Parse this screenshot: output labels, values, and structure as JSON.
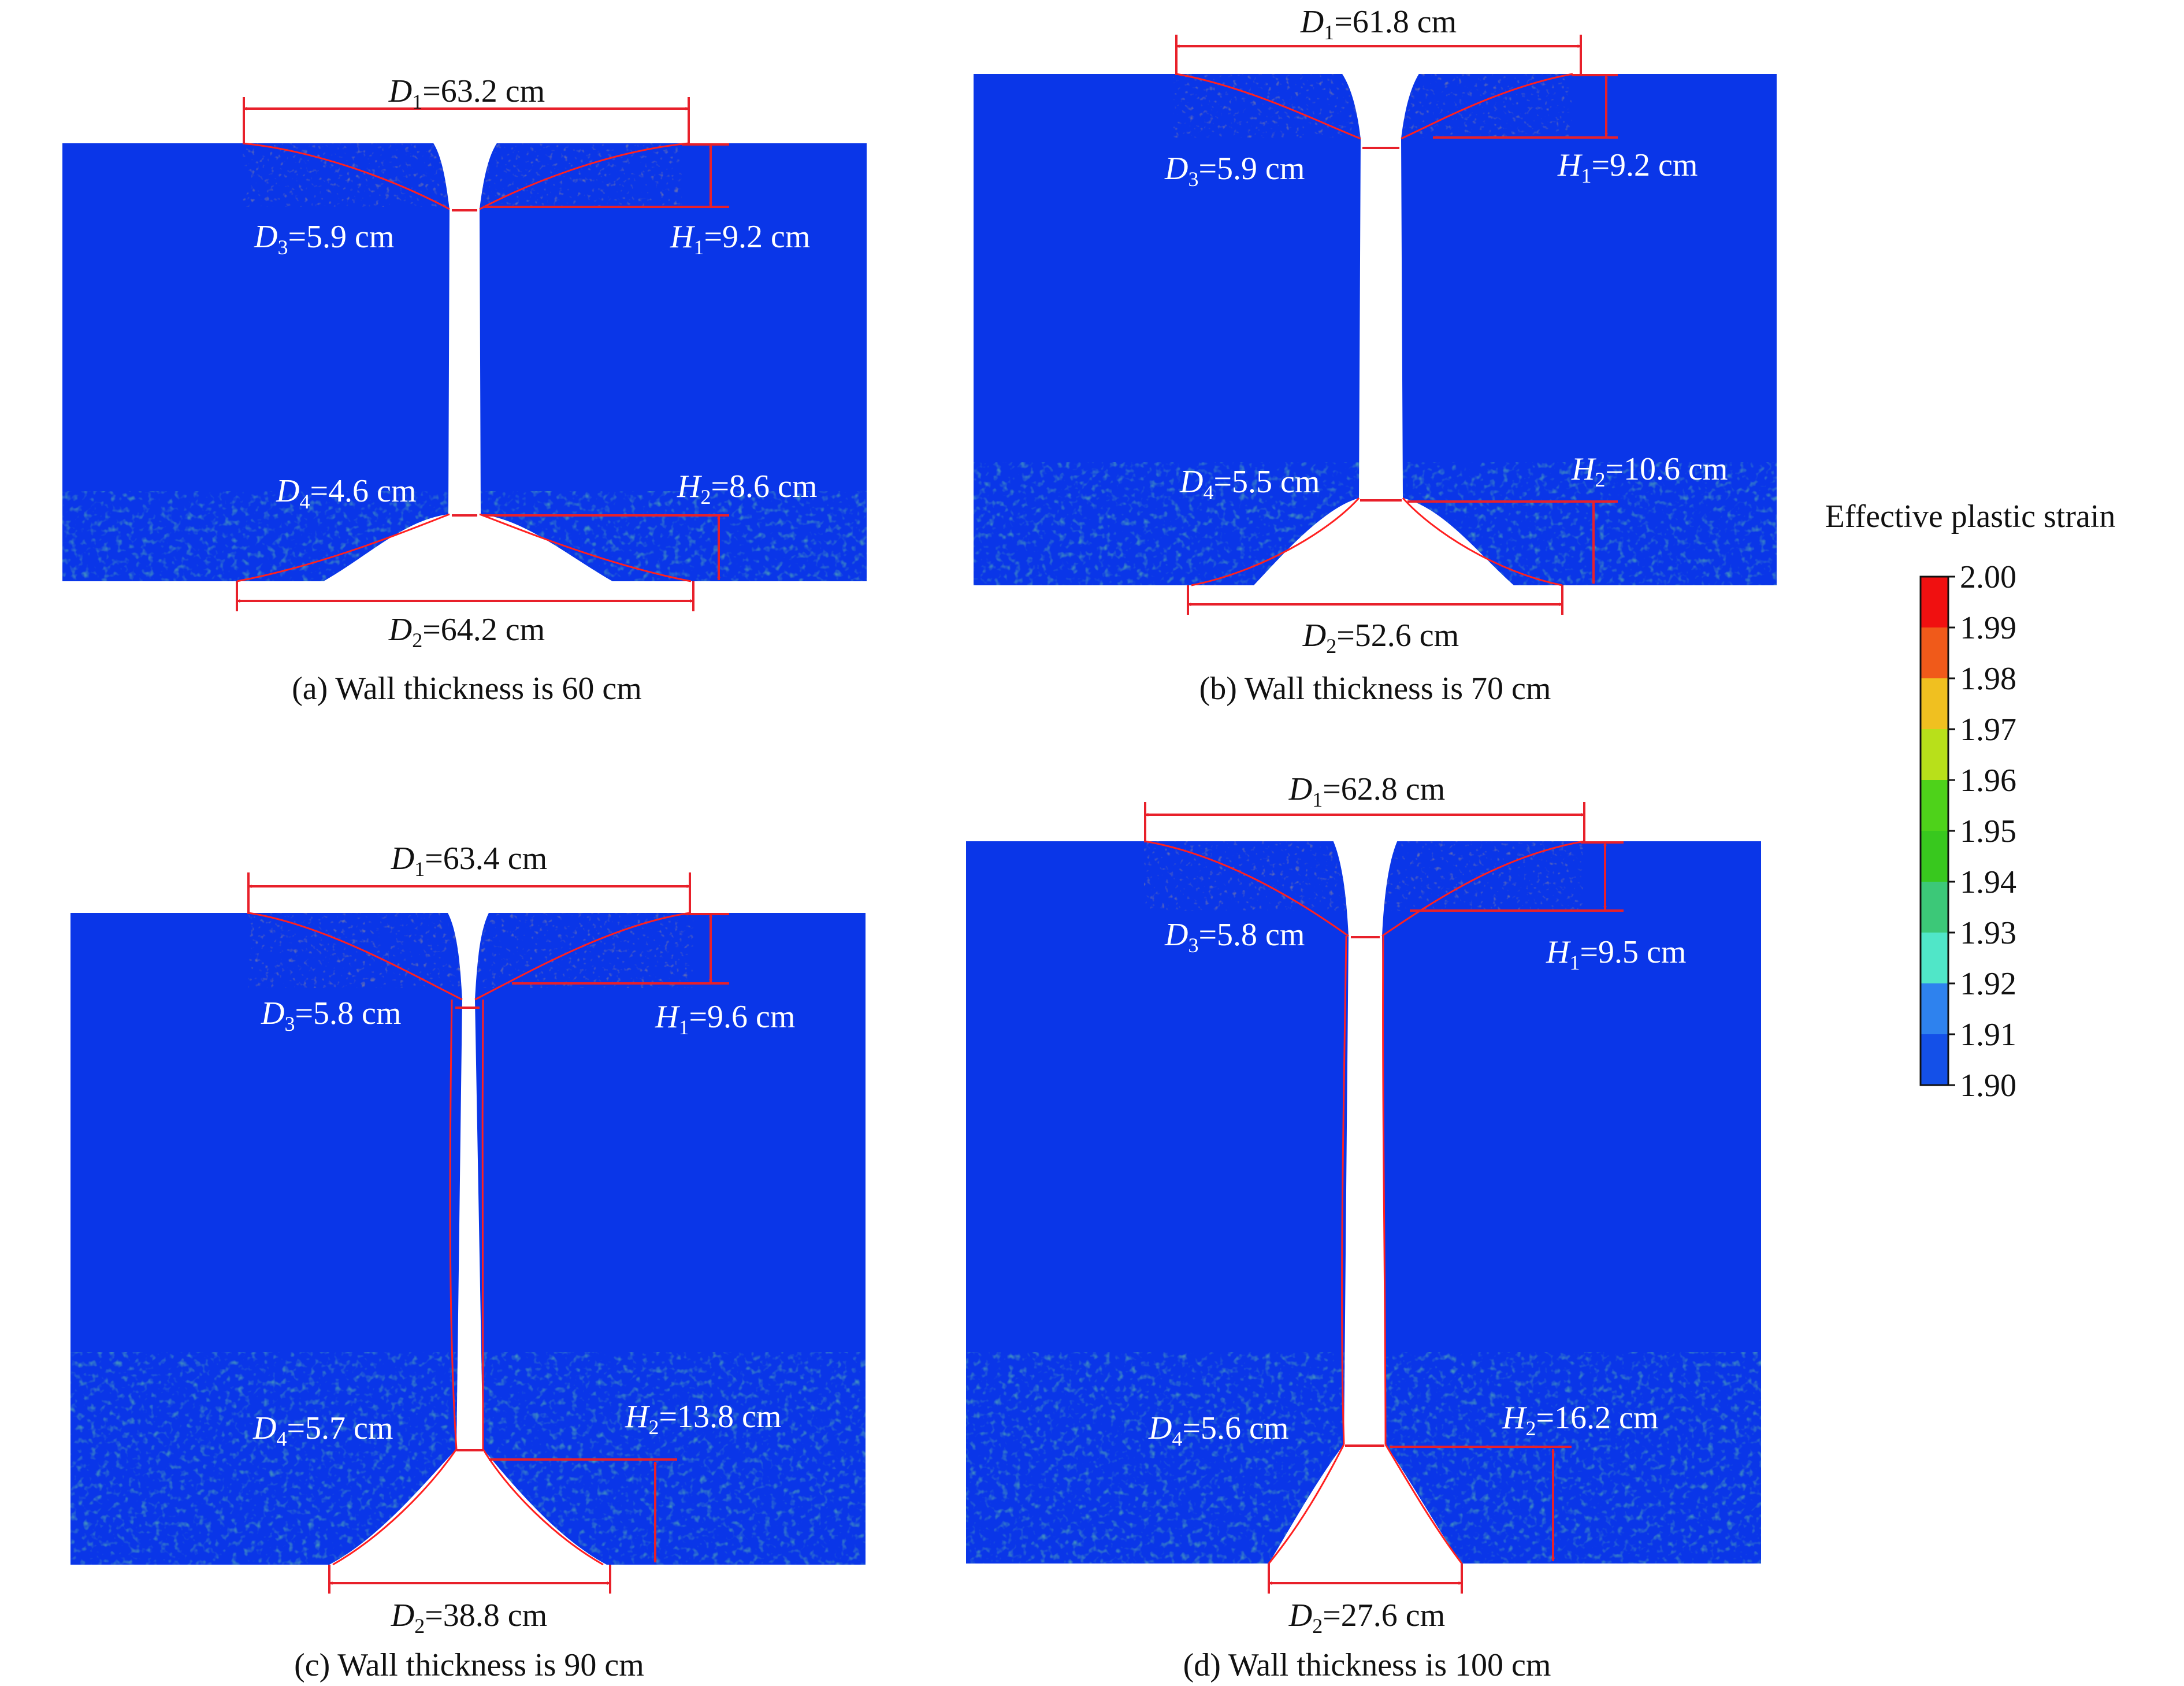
{
  "panels": [
    {
      "id": "a",
      "caption": "(a) Wall thickness is 60 cm",
      "D1": "=63.2 cm",
      "D2": "=64.2 cm",
      "D3": "=5.9 cm",
      "D4": "=4.6 cm",
      "H1": "=9.2 cm",
      "H2": "=8.6 cm"
    },
    {
      "id": "b",
      "caption": "(b) Wall thickness is 70 cm",
      "D1": "=61.8 cm",
      "D2": "=52.6 cm",
      "D3": "=5.9 cm",
      "D4": "=5.5 cm",
      "H1": "=9.2 cm",
      "H2": "=10.6 cm"
    },
    {
      "id": "c",
      "caption": "(c) Wall thickness is 90 cm",
      "D1": "=63.4 cm",
      "D2": "=38.8 cm",
      "D3": "=5.8 cm",
      "D4": "=5.7 cm",
      "H1": "=9.6 cm",
      "H2": "=13.8 cm"
    },
    {
      "id": "d",
      "caption": "(d) Wall thickness is 100 cm",
      "D1": "=62.8 cm",
      "D2": "=27.6 cm",
      "D3": "=5.8 cm",
      "D4": "=5.6 cm",
      "H1": "=9.5 cm",
      "H2": "=16.2 cm"
    }
  ],
  "symbols": {
    "D": "D",
    "H": "H",
    "sub1": "1",
    "sub2": "2",
    "sub3": "3",
    "sub4": "4"
  },
  "colorbar": {
    "title": "Effective plastic strain",
    "ticks": [
      "2.00",
      "1.99",
      "1.98",
      "1.97",
      "1.96",
      "1.95",
      "1.94",
      "1.93",
      "1.92",
      "1.91",
      "1.90"
    ],
    "colors": [
      "#f01010",
      "#f05a1a",
      "#f0c020",
      "#b8e01a",
      "#4ed21a",
      "#38c81e",
      "#3cc878",
      "#50e6c8",
      "#2e82ee",
      "#1450e8"
    ]
  },
  "colors": {
    "background_blue": "#0a36e8",
    "annotation_red": "#e8202a"
  }
}
